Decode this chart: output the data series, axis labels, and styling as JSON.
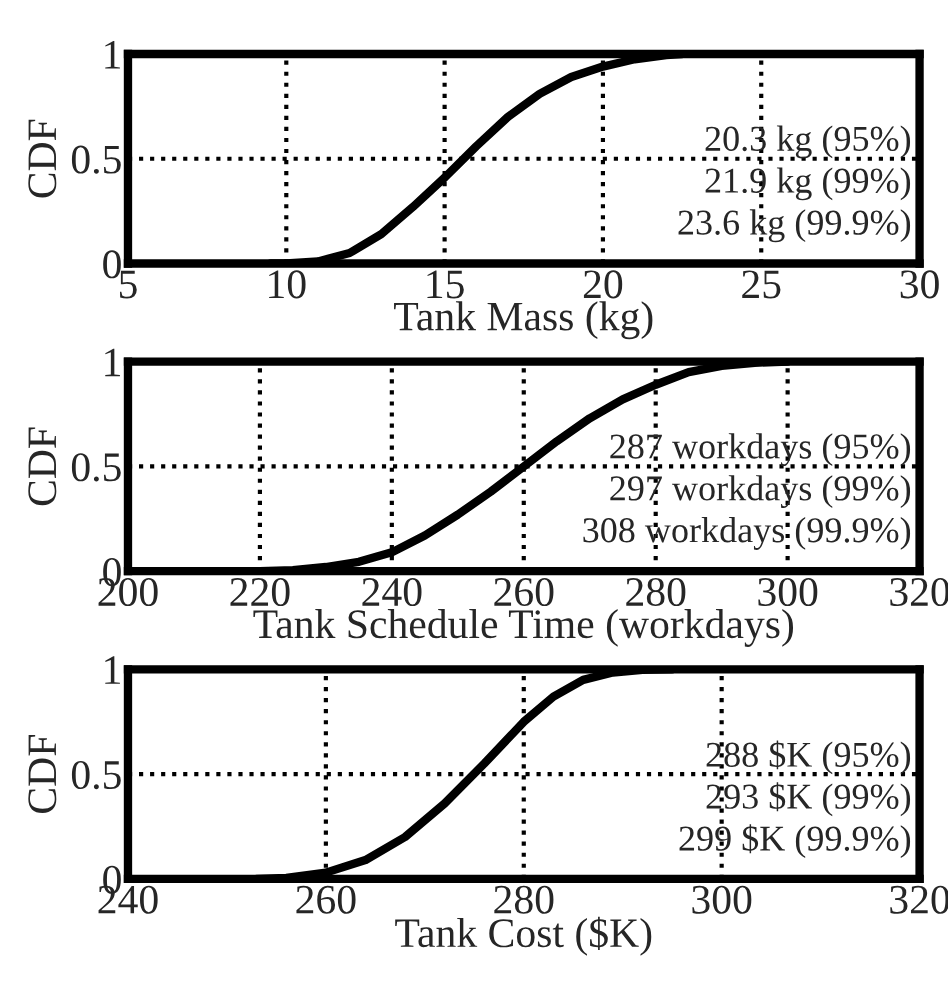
{
  "chart_data": [
    {
      "type": "line",
      "xlabel": "Tank Mass (kg)",
      "ylabel": "CDF",
      "xlim": [
        5,
        30
      ],
      "xticks": [
        5,
        10,
        15,
        20,
        25,
        30
      ],
      "ylim": [
        0,
        1
      ],
      "yticks": [
        0,
        0.5,
        1
      ],
      "grid": true,
      "series": [
        {
          "color": "#000000",
          "x": [
            9.5,
            10,
            11,
            12,
            13,
            14,
            15,
            16,
            17,
            18,
            19,
            20,
            21,
            22,
            22.5
          ],
          "values": [
            0,
            0,
            0.01,
            0.05,
            0.14,
            0.27,
            0.41,
            0.56,
            0.7,
            0.81,
            0.89,
            0.94,
            0.975,
            0.995,
            1
          ]
        }
      ],
      "annotations": [
        "20.3 kg (95%)",
        "21.9 kg (99%)",
        "23.6 kg (99.9%)"
      ]
    },
    {
      "type": "line",
      "xlabel": "Tank Schedule Time (workdays)",
      "ylabel": "CDF",
      "xlim": [
        200,
        320
      ],
      "xticks": [
        200,
        220,
        240,
        260,
        280,
        300,
        320
      ],
      "ylim": [
        0,
        1
      ],
      "yticks": [
        0,
        0.5,
        1
      ],
      "grid": true,
      "series": [
        {
          "color": "#000000",
          "x": [
            220,
            225,
            230,
            235,
            240,
            245,
            250,
            255,
            260,
            265,
            270,
            275,
            280,
            285,
            290,
            295,
            300
          ],
          "values": [
            0,
            0.005,
            0.02,
            0.045,
            0.09,
            0.17,
            0.27,
            0.38,
            0.5,
            0.62,
            0.73,
            0.82,
            0.89,
            0.95,
            0.98,
            0.995,
            1
          ]
        }
      ],
      "annotations": [
        "287 workdays (95%)",
        "297 workdays (99%)",
        "308 workdays (99.9%)"
      ]
    },
    {
      "type": "line",
      "xlabel": "Tank Cost ($K)",
      "ylabel": "CDF",
      "xlim": [
        240,
        320
      ],
      "xticks": [
        240,
        260,
        280,
        300,
        320
      ],
      "ylim": [
        0,
        1
      ],
      "yticks": [
        0,
        0.5,
        1
      ],
      "grid": true,
      "series": [
        {
          "color": "#000000",
          "x": [
            253,
            256,
            260,
            264,
            268,
            272,
            276,
            280,
            283,
            286,
            289,
            292,
            295
          ],
          "values": [
            0,
            0.005,
            0.03,
            0.09,
            0.2,
            0.36,
            0.55,
            0.75,
            0.87,
            0.95,
            0.985,
            0.998,
            1
          ]
        }
      ],
      "annotations": [
        "288 $K (95%)",
        "293 $K (99%)",
        "299 $K (99.9%)"
      ]
    }
  ]
}
